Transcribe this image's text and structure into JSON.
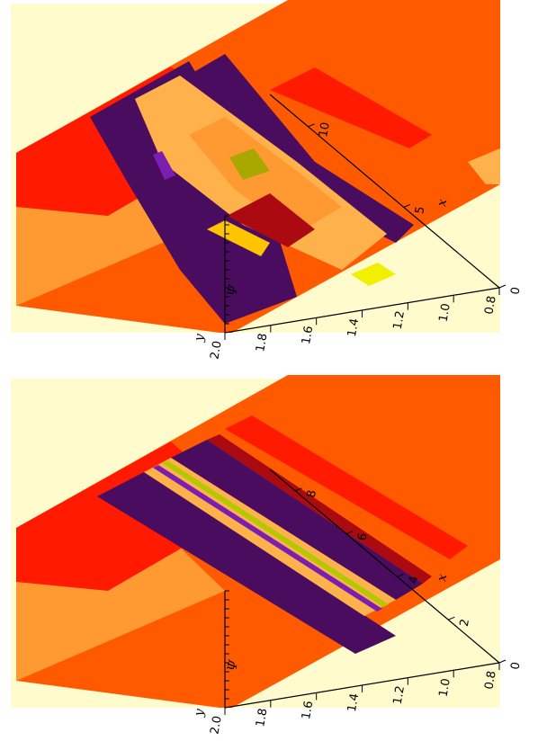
{
  "colors": {
    "background": "#fffbcc",
    "red": "#ff1a00",
    "orange_red": "#ff5a00",
    "orange": "#ff9a33",
    "light_orange": "#ffb24c",
    "amber": "#ffc400",
    "dark_purple": "#4a0c5e",
    "violet": "#7a1fb0",
    "maroon": "#aa0a10",
    "olive": "#a8a800",
    "yellow": "#f0f000",
    "green_yellow": "#b4c800",
    "black": "#000000"
  },
  "chart_data": [
    {
      "type": "surface",
      "axes": {
        "x": {
          "label": "x",
          "range": [
            0,
            12
          ],
          "ticks": [
            0,
            5,
            10
          ],
          "tick_labels": [
            "0",
            "5",
            "10"
          ]
        },
        "y": {
          "label": "y",
          "range": [
            0.8,
            2.0
          ],
          "ticks": [
            0.8,
            1.0,
            1.2,
            1.4,
            1.6,
            1.8,
            2.0
          ],
          "tick_labels": [
            "0.8",
            "1.0",
            "1.2",
            "1.4",
            "1.6",
            "1.8",
            "2.0"
          ]
        },
        "z": {
          "label": "Ψ",
          "range": [
            -1,
            1
          ]
        }
      },
      "features": [
        "tilted stripes",
        "central island",
        "vortex roll-up"
      ]
    },
    {
      "type": "surface",
      "axes": {
        "x": {
          "label": "x",
          "range": [
            0,
            9
          ],
          "ticks": [
            0,
            2,
            4,
            6,
            8
          ],
          "tick_labels": [
            "0",
            "2",
            "4",
            "6",
            "8"
          ]
        },
        "y": {
          "label": "y",
          "range": [
            0.8,
            2.0
          ],
          "ticks": [
            0.8,
            1.0,
            1.2,
            1.4,
            1.6,
            1.8,
            2.0
          ],
          "tick_labels": [
            "0.8",
            "1.0",
            "1.2",
            "1.4",
            "1.6",
            "1.8",
            "2.0"
          ]
        },
        "z": {
          "label": "Ψ",
          "range": [
            -1,
            1
          ]
        }
      },
      "features": [
        "straight parallel bands"
      ]
    }
  ]
}
